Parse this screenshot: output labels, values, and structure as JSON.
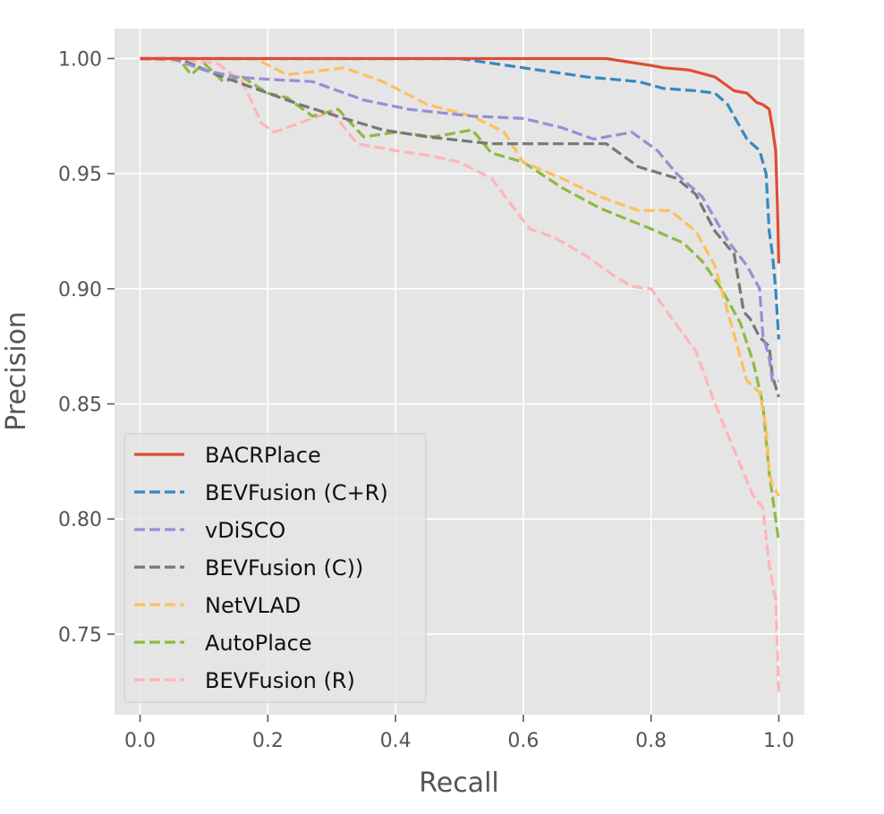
{
  "chart_data": {
    "type": "line",
    "title": "",
    "xlabel": "Recall",
    "ylabel": "Precision",
    "xlim": [
      -0.04,
      1.04
    ],
    "ylim": [
      0.715,
      1.013
    ],
    "grid": true,
    "legend_position": "lower-left",
    "xticks": [
      0.0,
      0.2,
      0.4,
      0.6,
      0.8,
      1.0
    ],
    "xtick_labels": [
      "0.0",
      "0.2",
      "0.4",
      "0.6",
      "0.8",
      "1.0"
    ],
    "yticks": [
      0.75,
      0.8,
      0.85,
      0.9,
      0.95,
      1.0
    ],
    "ytick_labels": [
      "0.75",
      "0.80",
      "0.85",
      "0.90",
      "0.95",
      "1.00"
    ],
    "series": [
      {
        "name": "BACRPlace",
        "color": "#E24A33",
        "dashed": false,
        "x": [
          0.0,
          0.73,
          0.8,
          0.82,
          0.86,
          0.9,
          0.93,
          0.95,
          0.965,
          0.975,
          0.985,
          0.99,
          0.995,
          0.998,
          1.0
        ],
        "y": [
          1.0,
          1.0,
          0.997,
          0.996,
          0.995,
          0.992,
          0.986,
          0.985,
          0.981,
          0.98,
          0.978,
          0.97,
          0.96,
          0.935,
          0.911
        ]
      },
      {
        "name": "BEVFusion (C+R)",
        "color": "#348ABD",
        "dashed": true,
        "x": [
          0.0,
          0.5,
          0.6,
          0.7,
          0.78,
          0.82,
          0.87,
          0.9,
          0.92,
          0.94,
          0.95,
          0.97,
          0.98,
          0.985,
          0.99,
          0.995,
          1.0
        ],
        "y": [
          1.0,
          1.0,
          0.996,
          0.992,
          0.99,
          0.987,
          0.986,
          0.985,
          0.98,
          0.97,
          0.965,
          0.96,
          0.95,
          0.925,
          0.915,
          0.9,
          0.878
        ]
      },
      {
        "name": "vDiSCO",
        "color": "#988ED5",
        "dashed": true,
        "x": [
          0.0,
          0.05,
          0.1,
          0.15,
          0.2,
          0.27,
          0.35,
          0.42,
          0.52,
          0.6,
          0.66,
          0.71,
          0.77,
          0.81,
          0.84,
          0.88,
          0.92,
          0.95,
          0.97,
          0.975,
          0.985,
          0.99,
          1.0
        ],
        "y": [
          1.0,
          1.0,
          0.995,
          0.992,
          0.991,
          0.99,
          0.982,
          0.978,
          0.975,
          0.974,
          0.97,
          0.965,
          0.968,
          0.96,
          0.95,
          0.94,
          0.921,
          0.91,
          0.9,
          0.88,
          0.87,
          0.86,
          0.86
        ]
      },
      {
        "name": "BEVFusion (C))",
        "color": "#777777",
        "dashed": true,
        "x": [
          0.0,
          0.06,
          0.12,
          0.18,
          0.25,
          0.32,
          0.38,
          0.45,
          0.55,
          0.65,
          0.73,
          0.78,
          0.84,
          0.87,
          0.9,
          0.93,
          0.945,
          0.955,
          0.97,
          0.985,
          0.99,
          1.0
        ],
        "y": [
          1.0,
          1.0,
          0.993,
          0.987,
          0.98,
          0.974,
          0.969,
          0.966,
          0.963,
          0.963,
          0.963,
          0.953,
          0.948,
          0.941,
          0.925,
          0.915,
          0.89,
          0.887,
          0.879,
          0.875,
          0.862,
          0.853
        ]
      },
      {
        "name": "NetVLAD",
        "color": "#FBC15E",
        "dashed": true,
        "x": [
          0.0,
          0.18,
          0.23,
          0.32,
          0.38,
          0.45,
          0.52,
          0.57,
          0.6,
          0.66,
          0.72,
          0.78,
          0.83,
          0.87,
          0.9,
          0.93,
          0.95,
          0.97,
          0.98,
          0.985,
          0.99,
          1.0
        ],
        "y": [
          1.0,
          1.0,
          0.993,
          0.996,
          0.99,
          0.98,
          0.975,
          0.968,
          0.955,
          0.948,
          0.94,
          0.934,
          0.934,
          0.925,
          0.91,
          0.88,
          0.86,
          0.855,
          0.84,
          0.82,
          0.815,
          0.81
        ]
      },
      {
        "name": "AutoPlace",
        "color": "#8EBA42",
        "dashed": true,
        "x": [
          0.0,
          0.06,
          0.08,
          0.1,
          0.13,
          0.16,
          0.2,
          0.23,
          0.27,
          0.31,
          0.35,
          0.4,
          0.46,
          0.52,
          0.55,
          0.6,
          0.66,
          0.72,
          0.8,
          0.85,
          0.88,
          0.91,
          0.94,
          0.96,
          0.975,
          0.985,
          0.995,
          1.0
        ],
        "y": [
          1.0,
          1.0,
          0.993,
          0.998,
          0.99,
          0.992,
          0.985,
          0.983,
          0.975,
          0.978,
          0.966,
          0.968,
          0.966,
          0.969,
          0.959,
          0.955,
          0.944,
          0.935,
          0.926,
          0.92,
          0.912,
          0.9,
          0.885,
          0.868,
          0.85,
          0.82,
          0.8,
          0.79
        ]
      },
      {
        "name": "BEVFusion (R)",
        "color": "#FFB5B8",
        "dashed": true,
        "x": [
          0.0,
          0.12,
          0.16,
          0.19,
          0.21,
          0.25,
          0.3,
          0.34,
          0.4,
          0.45,
          0.5,
          0.55,
          0.58,
          0.61,
          0.65,
          0.7,
          0.74,
          0.77,
          0.8,
          0.83,
          0.87,
          0.9,
          0.93,
          0.96,
          0.975,
          0.985,
          0.995,
          1.0
        ],
        "y": [
          1.0,
          0.998,
          0.99,
          0.972,
          0.968,
          0.972,
          0.977,
          0.963,
          0.96,
          0.958,
          0.955,
          0.948,
          0.937,
          0.926,
          0.922,
          0.914,
          0.906,
          0.901,
          0.9,
          0.888,
          0.873,
          0.85,
          0.83,
          0.81,
          0.805,
          0.78,
          0.765,
          0.725
        ]
      }
    ]
  }
}
